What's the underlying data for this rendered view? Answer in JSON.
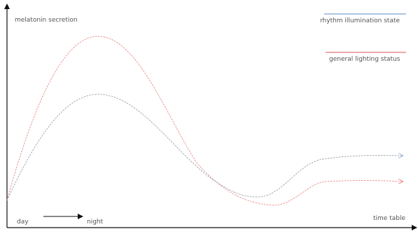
{
  "labels": {
    "y_axis": "melatonin secretion",
    "x_axis": "time table",
    "day": "day",
    "night": "night"
  },
  "legend": [
    {
      "label": "rhythm illumination state",
      "color": "#8fb0d8"
    },
    {
      "label": "general lighting status",
      "color": "#e88a8a"
    }
  ],
  "colors": {
    "axis": "#111111",
    "rhythm_curve": "#9aa0a8",
    "general_curve": "#e88a8a",
    "rhythm_arrow": "#9ab3d6",
    "general_arrow": "#e88a8a"
  }
}
